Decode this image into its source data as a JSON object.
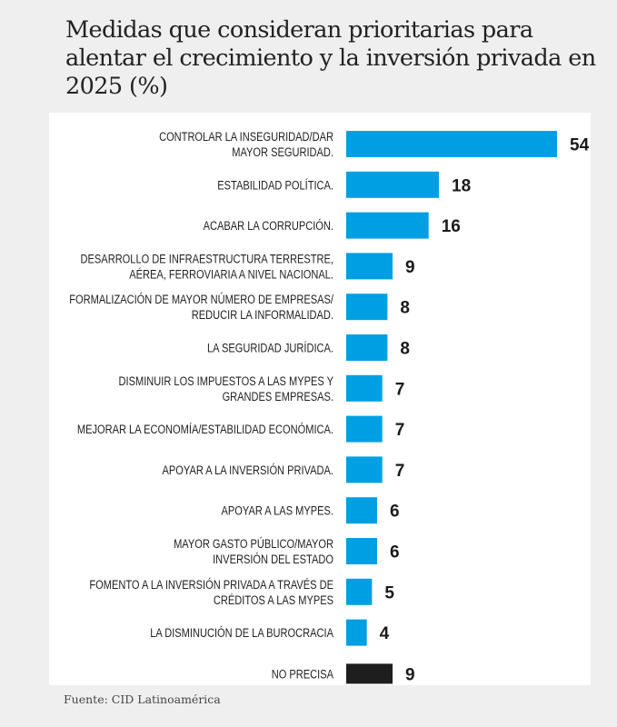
{
  "title": "Medidas que consideran prioritarias para alentar el crecimiento y la inversión privada en 2025 (%)",
  "source": "Fuente: CID Latinoamérica",
  "colors": {
    "bar": "#009fe3",
    "bar_other": "#1e1e1e",
    "background": "#efefef",
    "panel": "#ffffff"
  },
  "chart_data": {
    "type": "bar",
    "orientation": "horizontal",
    "title": "Medidas que consideran prioritarias para alentar el crecimiento y la inversión privada en 2025 (%)",
    "xlabel": "",
    "ylabel": "",
    "unit": "%",
    "grid": false,
    "legend": "none",
    "categories": [
      [
        "CONTROLAR LA INSEGURIDAD/DAR",
        "MAYOR SEGURIDAD."
      ],
      [
        "ESTABILIDAD POLÍTICA."
      ],
      [
        "ACABAR LA CORRUPCIÓN."
      ],
      [
        "DESARROLLO DE INFRAESTRUCTURA TERRESTRE,",
        "AÉREA, FERROVIARIA A NIVEL NACIONAL."
      ],
      [
        "FORMALIZACIÓN DE MAYOR NÚMERO DE EMPRESAS/",
        "REDUCIR LA INFORMALIDAD."
      ],
      [
        "LA SEGURIDAD JURÍDICA."
      ],
      [
        "DISMINUIR LOS IMPUESTOS A LAS MYPES Y",
        "GRANDES EMPRESAS."
      ],
      [
        "MEJORAR LA ECONOMÍA/ESTABILIDAD ECONÓMICA."
      ],
      [
        "APOYAR A LA INVERSIÓN PRIVADA."
      ],
      [
        "APOYAR A LAS MYPES."
      ],
      [
        "MAYOR GASTO PÚBLICO/MAYOR",
        "INVERSIÓN DEL ESTADO"
      ],
      [
        "FOMENTO A LA INVERSIÓN PRIVADA A TRAVÉS DE",
        "CRÉDITOS A LAS MYPES"
      ],
      [
        "LA DISMINUCIÓN DE LA BUROCRACIA"
      ],
      [
        "NO PRECISA"
      ]
    ],
    "values": [
      54,
      18,
      16,
      9,
      8,
      8,
      7,
      7,
      7,
      6,
      6,
      5,
      4,
      9
    ],
    "highlight": [
      false,
      false,
      false,
      false,
      false,
      false,
      false,
      false,
      false,
      false,
      false,
      false,
      false,
      true
    ]
  }
}
